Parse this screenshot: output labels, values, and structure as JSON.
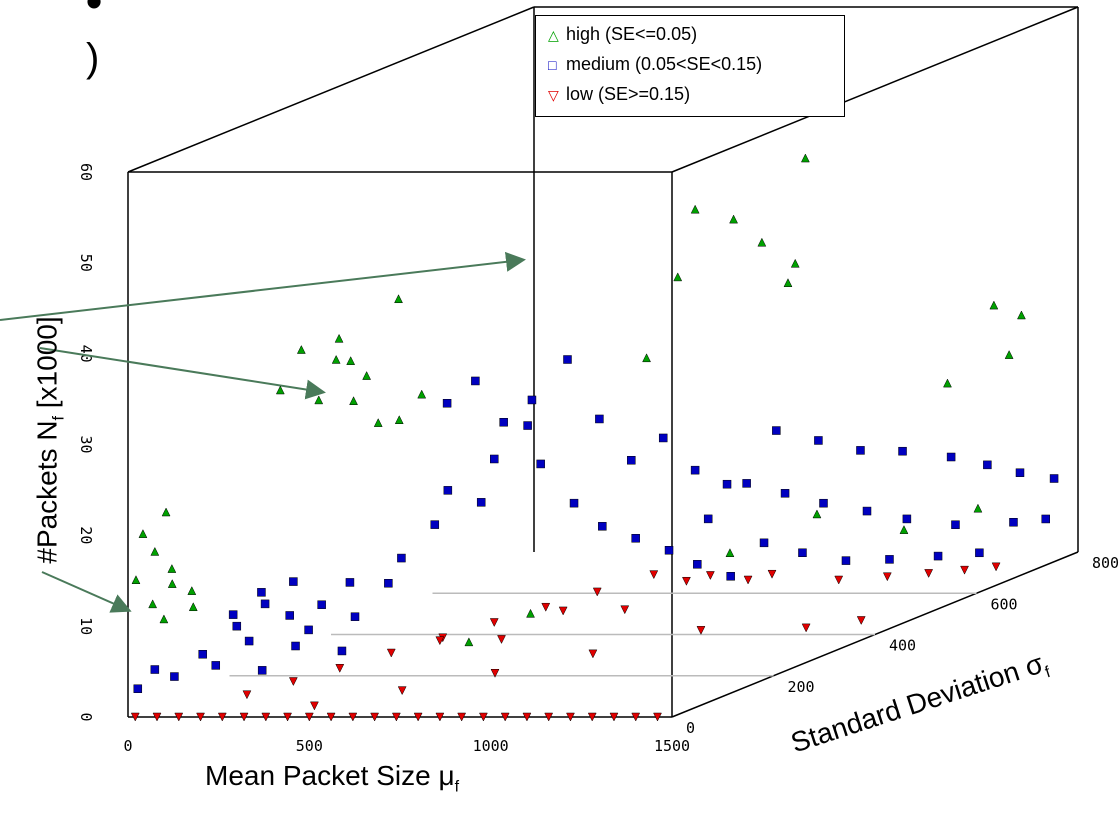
{
  "page": {
    "fragment_top": "•",
    "fragment_paren": ")"
  },
  "chart_data": {
    "type": "scatter",
    "title": "",
    "xlabel": "Mean Packet Size μ",
    "xlabel_sub": "f",
    "ylabel": "#Packets N",
    "ylabel_sub": "f",
    "ylabel_suffix": " [x1000]",
    "zlabel": "Standard Deviation σ",
    "zlabel_sub": "f",
    "xlim": [
      0,
      1500
    ],
    "ylim": [
      0,
      60
    ],
    "zlim": [
      0,
      800
    ],
    "x_ticks": [
      "0",
      "500",
      "1000",
      "1500"
    ],
    "y_ticks": [
      "0",
      "10",
      "20",
      "30",
      "40",
      "50",
      "60"
    ],
    "z_ticks": [
      "0",
      "200",
      "400",
      "600",
      "800"
    ],
    "grid": false,
    "legend_position": "top-right",
    "series": [
      {
        "name": "high (SE<=0.05)",
        "marker": "triangle-up",
        "color": "#00a000",
        "points": [
          [
            15,
            15,
            5
          ],
          [
            40,
            12,
            20
          ],
          [
            60,
            18,
            10
          ],
          [
            80,
            14,
            30
          ],
          [
            100,
            16,
            15
          ],
          [
            120,
            13,
            40
          ],
          [
            30,
            20,
            8
          ],
          [
            70,
            22,
            25
          ],
          [
            110,
            11,
            50
          ],
          [
            50,
            10,
            35
          ],
          [
            420,
            36,
            0
          ],
          [
            450,
            40,
            20
          ],
          [
            470,
            34,
            40
          ],
          [
            490,
            38,
            60
          ],
          [
            510,
            33,
            80
          ],
          [
            540,
            41,
            30
          ],
          [
            560,
            36,
            70
          ],
          [
            600,
            39,
            10
          ],
          [
            620,
            44,
            90
          ],
          [
            580,
            30,
            120
          ],
          [
            480,
            29,
            150
          ],
          [
            530,
            31,
            200
          ],
          [
            1200,
            50,
            260
          ],
          [
            1250,
            48,
            300
          ],
          [
            1300,
            45,
            320
          ],
          [
            1180,
            43,
            240
          ],
          [
            1350,
            42,
            350
          ],
          [
            1400,
            41,
            300
          ],
          [
            1150,
            35,
            200
          ],
          [
            1280,
            52,
            420
          ],
          [
            1400,
            27,
            760
          ],
          [
            1450,
            24,
            700
          ],
          [
            1350,
            22,
            650
          ],
          [
            1380,
            29,
            720
          ],
          [
            900,
            8,
            150
          ],
          [
            1100,
            9,
            400
          ],
          [
            1200,
            11,
            500
          ],
          [
            1300,
            7,
            600
          ],
          [
            1420,
            8,
            660
          ],
          [
            800,
            6,
            100
          ]
        ]
      },
      {
        "name": "medium (0.05<SE<0.15)",
        "marker": "square",
        "color": "#0000c0",
        "points": [
          [
            20,
            3,
            5
          ],
          [
            60,
            5,
            10
          ],
          [
            100,
            4,
            20
          ],
          [
            150,
            6,
            40
          ],
          [
            200,
            5,
            30
          ],
          [
            250,
            7,
            60
          ],
          [
            300,
            4,
            50
          ],
          [
            350,
            6,
            80
          ],
          [
            400,
            8,
            70
          ],
          [
            450,
            5,
            100
          ],
          [
            500,
            9,
            90
          ],
          [
            550,
            12,
            120
          ],
          [
            600,
            15,
            110
          ],
          [
            650,
            18,
            140
          ],
          [
            700,
            22,
            130
          ],
          [
            750,
            20,
            160
          ],
          [
            800,
            25,
            150
          ],
          [
            850,
            28,
            180
          ],
          [
            900,
            24,
            170
          ],
          [
            950,
            19,
            200
          ],
          [
            1000,
            16,
            220
          ],
          [
            1050,
            14,
            250
          ],
          [
            1100,
            12,
            280
          ],
          [
            1150,
            10,
            300
          ],
          [
            1200,
            8,
            330
          ],
          [
            1250,
            11,
            360
          ],
          [
            1300,
            9,
            400
          ],
          [
            1350,
            7,
            450
          ],
          [
            1400,
            6,
            500
          ],
          [
            1450,
            5,
            560
          ],
          [
            1480,
            4,
            620
          ],
          [
            1490,
            6,
            680
          ],
          [
            1495,
            5,
            740
          ],
          [
            1470,
            8,
            580
          ],
          [
            1420,
            10,
            520
          ],
          [
            1380,
            12,
            470
          ],
          [
            1330,
            14,
            420
          ],
          [
            1280,
            16,
            380
          ],
          [
            1230,
            18,
            340
          ],
          [
            1180,
            15,
            300
          ],
          [
            600,
            30,
            200
          ],
          [
            650,
            32,
            220
          ],
          [
            700,
            27,
            240
          ],
          [
            750,
            29,
            260
          ],
          [
            820,
            33,
            280
          ],
          [
            880,
            26,
            300
          ],
          [
            940,
            21,
            320
          ],
          [
            1000,
            23,
            340
          ],
          [
            1060,
            19,
            360
          ],
          [
            1120,
            17,
            380
          ],
          [
            1200,
            22,
            420
          ],
          [
            1260,
            20,
            460
          ],
          [
            1320,
            18,
            500
          ],
          [
            1380,
            17,
            540
          ],
          [
            1430,
            15,
            600
          ],
          [
            1460,
            13,
            650
          ],
          [
            1480,
            11,
            700
          ],
          [
            1490,
            9,
            760
          ],
          [
            300,
            10,
            0
          ],
          [
            350,
            12,
            20
          ],
          [
            400,
            14,
            40
          ],
          [
            450,
            11,
            60
          ],
          [
            500,
            13,
            80
          ],
          [
            150,
            9,
            100
          ],
          [
            200,
            11,
            120
          ],
          [
            250,
            8,
            140
          ]
        ]
      },
      {
        "name": "low (SE>=0.15)",
        "marker": "triangle-down",
        "color": "#e00000",
        "points": [
          [
            20,
            0,
            0
          ],
          [
            80,
            0,
            0
          ],
          [
            140,
            0,
            0
          ],
          [
            200,
            0,
            0
          ],
          [
            260,
            0,
            0
          ],
          [
            320,
            0,
            0
          ],
          [
            380,
            0,
            0
          ],
          [
            440,
            0,
            0
          ],
          [
            500,
            0,
            0
          ],
          [
            560,
            0,
            0
          ],
          [
            620,
            0,
            0
          ],
          [
            680,
            0,
            0
          ],
          [
            740,
            0,
            0
          ],
          [
            800,
            0,
            0
          ],
          [
            860,
            0,
            0
          ],
          [
            920,
            0,
            0
          ],
          [
            980,
            0,
            0
          ],
          [
            1040,
            0,
            0
          ],
          [
            1100,
            0,
            0
          ],
          [
            1160,
            0,
            0
          ],
          [
            1220,
            0,
            0
          ],
          [
            1280,
            0,
            0
          ],
          [
            1340,
            0,
            0
          ],
          [
            1400,
            0,
            0
          ],
          [
            1460,
            0,
            0
          ],
          [
            300,
            2,
            20
          ],
          [
            400,
            3,
            40
          ],
          [
            500,
            4,
            60
          ],
          [
            600,
            5,
            90
          ],
          [
            700,
            6,
            120
          ],
          [
            800,
            7,
            150
          ],
          [
            900,
            8,
            180
          ],
          [
            1000,
            9,
            210
          ],
          [
            1100,
            10,
            250
          ],
          [
            1200,
            9,
            290
          ],
          [
            1300,
            8,
            340
          ],
          [
            1400,
            6,
            400
          ],
          [
            1450,
            5,
            460
          ],
          [
            1480,
            4,
            520
          ],
          [
            1495,
            3,
            580
          ],
          [
            1498,
            2,
            640
          ],
          [
            500,
            1,
            10
          ],
          [
            700,
            2,
            40
          ],
          [
            900,
            3,
            80
          ],
          [
            1100,
            4,
            130
          ],
          [
            1300,
            5,
            200
          ],
          [
            1450,
            3,
            300
          ],
          [
            1490,
            2,
            380
          ],
          [
            650,
            5,
            150
          ],
          [
            750,
            4,
            200
          ],
          [
            850,
            6,
            250
          ],
          [
            950,
            5,
            300
          ],
          [
            1050,
            7,
            350
          ],
          [
            1150,
            6,
            400
          ]
        ]
      }
    ]
  }
}
